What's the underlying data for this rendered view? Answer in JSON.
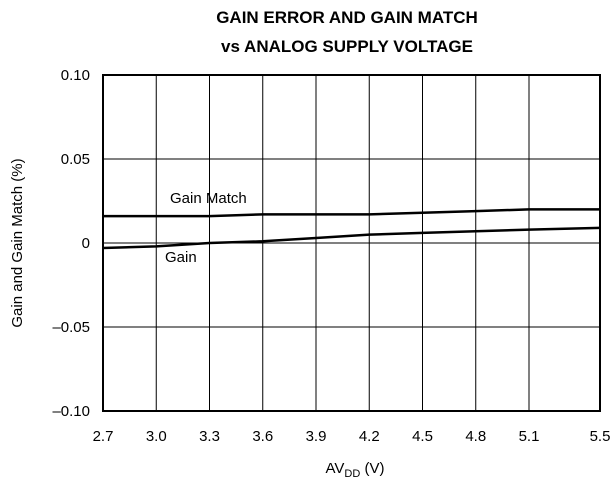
{
  "chart_data": {
    "type": "line",
    "title": [
      "GAIN ERROR AND GAIN MATCH",
      "vs ANALOG SUPPLY VOLTAGE"
    ],
    "xlabel": {
      "main": "AV",
      "sub": "DD",
      "unit": " (V)"
    },
    "ylabel": "Gain and Gain Match (%)",
    "xlim": [
      2.7,
      5.5
    ],
    "ylim": [
      -0.1,
      0.1
    ],
    "x_ticks": [
      "2.7",
      "3.0",
      "3.3",
      "3.6",
      "3.9",
      "4.2",
      "4.5",
      "4.8",
      "5.1",
      "5.5"
    ],
    "x_tick_values": [
      2.7,
      3.0,
      3.3,
      3.6,
      3.9,
      4.2,
      4.5,
      4.8,
      5.1,
      5.5
    ],
    "y_ticks": [
      "0.10",
      "0.05",
      "0",
      "–0.05",
      "–0.10"
    ],
    "y_tick_values": [
      0.1,
      0.05,
      0,
      -0.05,
      -0.1
    ],
    "grid": true,
    "series": [
      {
        "name": "Gain Match",
        "color": "#000000",
        "x": [
          2.7,
          3.0,
          3.3,
          3.6,
          3.9,
          4.2,
          4.5,
          4.8,
          5.1,
          5.5
        ],
        "values": [
          0.016,
          0.016,
          0.016,
          0.017,
          0.017,
          0.017,
          0.018,
          0.019,
          0.02,
          0.02
        ]
      },
      {
        "name": "Gain",
        "color": "#000000",
        "x": [
          2.7,
          3.0,
          3.3,
          3.6,
          3.9,
          4.2,
          4.5,
          4.8,
          5.1,
          5.5
        ],
        "values": [
          -0.003,
          -0.002,
          0.0,
          0.001,
          0.003,
          0.005,
          0.006,
          0.007,
          0.008,
          0.009
        ]
      }
    ]
  }
}
